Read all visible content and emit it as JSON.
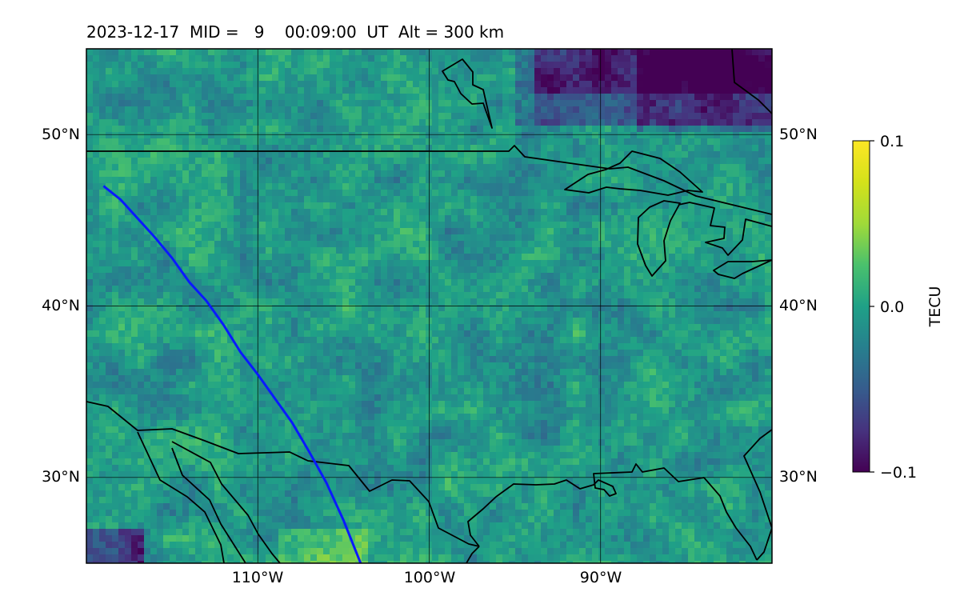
{
  "title": "2023-12-17  MID =   9    00:09:00  UT  Alt = 300 km",
  "map": {
    "lon_range": [
      -120,
      -80
    ],
    "lat_range": [
      25,
      55
    ],
    "lat_labels": [
      "50°N",
      "40°N",
      "30°N"
    ],
    "lat_label_values": [
      50,
      40,
      30
    ],
    "lon_labels": [
      "110°W",
      "100°W",
      "90°W"
    ],
    "lon_label_values": [
      -110,
      -100,
      -90
    ],
    "grid": true,
    "colormap": "viridis",
    "path_color": "#0a1aff",
    "satellite_path": [
      [
        -119,
        47
      ],
      [
        -118,
        46.2
      ],
      [
        -117,
        45.1
      ],
      [
        -116,
        44
      ],
      [
        -115,
        42.8
      ],
      [
        -114,
        41.4
      ],
      [
        -113,
        40.3
      ],
      [
        -112,
        38.9
      ],
      [
        -111,
        37.3
      ],
      [
        -110,
        36
      ],
      [
        -109,
        34.6
      ],
      [
        -108,
        33.2
      ],
      [
        -107,
        31.5
      ],
      [
        -106,
        29.7
      ],
      [
        -105,
        27.5
      ],
      [
        -104,
        25
      ]
    ]
  },
  "colorbar": {
    "label": "TECU",
    "min": -0.1,
    "max": 0.1,
    "ticks": [
      "0.1",
      "0.0",
      "−0.1"
    ],
    "tick_values": [
      0.1,
      0.0,
      -0.1
    ]
  }
}
